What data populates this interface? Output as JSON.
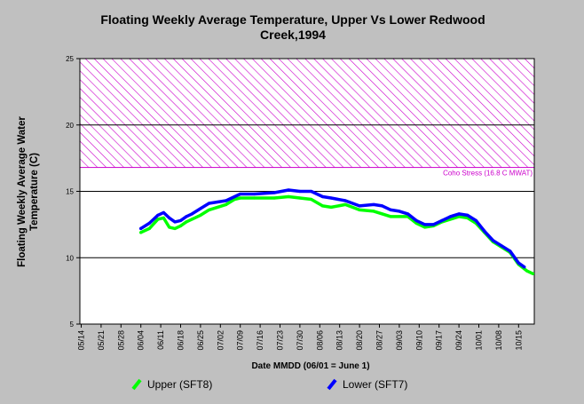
{
  "chart_data": {
    "type": "line",
    "title": [
      "Floating Weekly Average Temperature, Upper Vs Lower Redwood",
      "Creek,1994"
    ],
    "xlabel": "Date MMDD (06/01 = June 1)",
    "ylabel": [
      "Floating Weekly Average Water",
      "Temperature (C)"
    ],
    "ylim": [
      5,
      25
    ],
    "y_ticks": [
      5,
      10,
      15,
      20,
      25
    ],
    "grid_y": [
      10,
      15,
      20
    ],
    "x_tick_labels": [
      "05/14",
      "05/21",
      "05/28",
      "06/04",
      "06/11",
      "06/18",
      "06/25",
      "07/02",
      "07/09",
      "07/16",
      "07/23",
      "07/30",
      "08/06",
      "08/13",
      "08/20",
      "08/27",
      "09/03",
      "09/10",
      "09/17",
      "09/24",
      "10/01",
      "10/08",
      "10/15"
    ],
    "threshold": {
      "label": "Coho Stress (16.8 C MWAT)",
      "from": 16.8,
      "to": 25,
      "color": "#cc00cc"
    },
    "series": [
      {
        "name": "Upper (SFT8)",
        "color": "#00ff00",
        "x": [
          "06/04",
          "06/07",
          "06/10",
          "06/12",
          "06/14",
          "06/16",
          "06/18",
          "06/20",
          "06/22",
          "06/25",
          "06/28",
          "07/01",
          "07/04",
          "07/07",
          "07/09",
          "07/14",
          "07/21",
          "07/26",
          "07/30",
          "08/03",
          "08/07",
          "08/10",
          "08/15",
          "08/20",
          "08/25",
          "08/28",
          "08/31",
          "09/03",
          "09/06",
          "09/09",
          "09/12",
          "09/15",
          "09/18",
          "09/21",
          "09/24",
          "09/27",
          "09/30",
          "10/03",
          "10/06",
          "10/09",
          "10/12",
          "10/15",
          "10/18",
          "10/20"
        ],
        "values": [
          11.9,
          12.2,
          12.9,
          13.0,
          12.3,
          12.2,
          12.4,
          12.7,
          12.9,
          13.2,
          13.6,
          13.8,
          14.0,
          14.4,
          14.5,
          14.5,
          14.5,
          14.6,
          14.5,
          14.4,
          13.9,
          13.8,
          14.0,
          13.6,
          13.5,
          13.3,
          13.1,
          13.1,
          13.1,
          12.6,
          12.3,
          12.4,
          12.7,
          12.9,
          13.1,
          13.0,
          12.6,
          11.9,
          11.2,
          10.8,
          10.4,
          9.5,
          9.0,
          8.8
        ]
      },
      {
        "name": "Lower (SFT7)",
        "color": "#0000ff",
        "x": [
          "06/04",
          "06/07",
          "06/10",
          "06/12",
          "06/14",
          "06/16",
          "06/18",
          "06/20",
          "06/22",
          "06/25",
          "06/28",
          "07/01",
          "07/04",
          "07/07",
          "07/09",
          "07/14",
          "07/21",
          "07/26",
          "07/30",
          "08/03",
          "08/07",
          "08/10",
          "08/15",
          "08/20",
          "08/25",
          "08/28",
          "08/31",
          "09/03",
          "09/06",
          "09/09",
          "09/12",
          "09/15",
          "09/18",
          "09/21",
          "09/24",
          "09/27",
          "09/30",
          "10/03",
          "10/06",
          "10/09",
          "10/12",
          "10/15",
          "10/17"
        ],
        "values": [
          12.2,
          12.6,
          13.2,
          13.4,
          13.0,
          12.7,
          12.8,
          13.1,
          13.3,
          13.7,
          14.1,
          14.2,
          14.3,
          14.6,
          14.8,
          14.8,
          14.9,
          15.1,
          15.0,
          15.0,
          14.6,
          14.5,
          14.3,
          13.9,
          14.0,
          13.9,
          13.6,
          13.5,
          13.3,
          12.8,
          12.5,
          12.5,
          12.8,
          13.1,
          13.3,
          13.2,
          12.8,
          12.0,
          11.3,
          10.9,
          10.5,
          9.6,
          9.3
        ]
      }
    ],
    "legend_placement": "bottom"
  }
}
